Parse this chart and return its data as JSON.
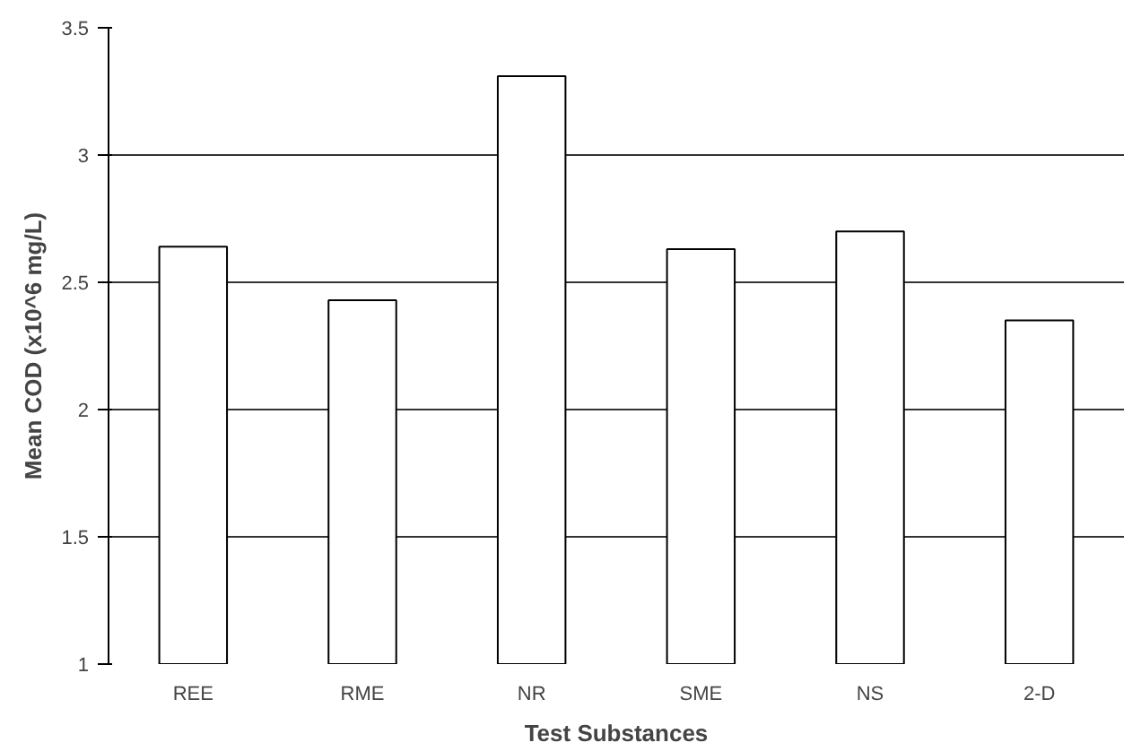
{
  "chart_data": {
    "type": "bar",
    "xlabel": "Test Substances",
    "ylabel": "Mean COD (x10^6 mg/L)",
    "categories": [
      "REE",
      "RME",
      "NR",
      "SME",
      "NS",
      "2-D"
    ],
    "values": [
      2.64,
      2.43,
      3.31,
      2.63,
      2.7,
      2.35
    ],
    "color": "#ffffff",
    "ylim": [
      1,
      3.5
    ],
    "yticks": [
      1,
      1.5,
      2,
      2.5,
      3,
      3.5
    ],
    "grid": "y"
  }
}
